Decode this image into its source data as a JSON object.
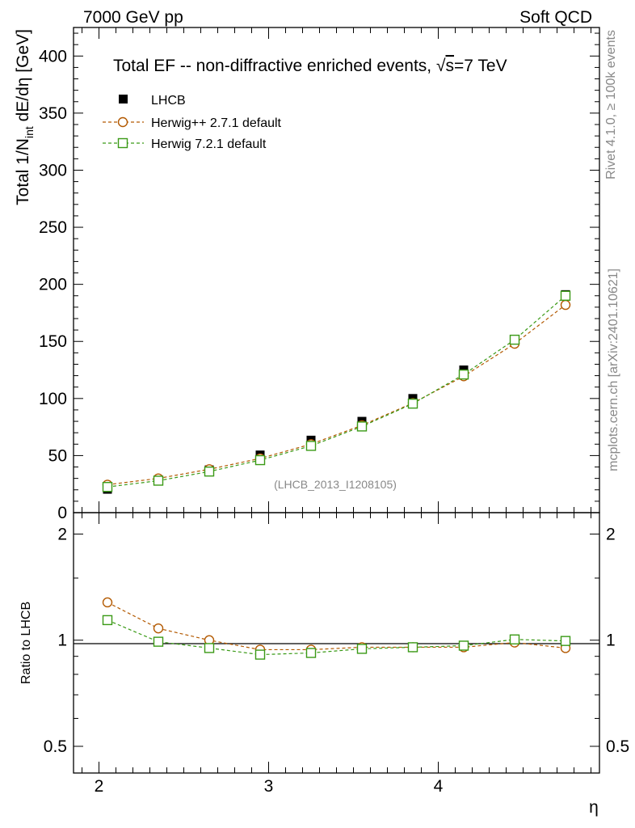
{
  "header": {
    "left": "7000 GeV pp",
    "right": "Soft QCD"
  },
  "side_text": {
    "rivet": "Rivet 4.1.0, ≥ 100k events",
    "mcplots": "mcplots.cern.ch [arXiv:2401.10621]"
  },
  "colors": {
    "data": "#000000",
    "herwigpp": "#b35900",
    "herwig7": "#3a9a16"
  },
  "chart_data": [
    {
      "type": "line",
      "title_main": "Total EF -- non-diffractive enriched events, ",
      "title_sqrt": "√",
      "title_s": "s",
      "title_energy": "=7 TeV",
      "xlabel": "η",
      "ylabel_main": "Total 1/N",
      "ylabel_sub": "int",
      "ylabel_unit": "  dE/dη [GeV]",
      "watermark": "(LHCB_2013_I1208105)",
      "xlim": [
        1.85,
        4.95
      ],
      "ylim": [
        0,
        425
      ],
      "xticks": [
        2,
        3,
        4
      ],
      "xtick_labels": [
        "2",
        "3",
        "4"
      ],
      "yticks": [
        0,
        50,
        100,
        150,
        200,
        250,
        300,
        350,
        400
      ],
      "ytick_labels": [
        "0",
        "50",
        "100",
        "150",
        "200",
        "250",
        "300",
        "350",
        "400"
      ],
      "x": [
        2.05,
        2.35,
        2.65,
        2.95,
        3.25,
        3.55,
        3.85,
        4.15,
        4.45,
        4.75
      ],
      "series": [
        {
          "name": "LHCB",
          "marker": "filled-square",
          "values": [
            20.5,
            28.5,
            37.5,
            50.5,
            63.5,
            80,
            100,
            125,
            150,
            191
          ]
        },
        {
          "name": "Herwig++ 2.7.1 default",
          "marker": "open-circle",
          "values": [
            24.5,
            30,
            38,
            47.5,
            60,
            76.5,
            96,
            119.5,
            148,
            182
          ]
        },
        {
          "name": "Herwig 7.2.1 default",
          "marker": "open-square",
          "values": [
            22.5,
            28,
            36,
            46,
            58.5,
            75.5,
            95.5,
            121,
            151.5,
            190
          ]
        }
      ]
    },
    {
      "type": "line",
      "yscale": "log",
      "ylabel": "Ratio to LHCB",
      "xlim": [
        1.85,
        4.95
      ],
      "ylim": [
        0.42,
        2.3
      ],
      "yticks": [
        0.5,
        1,
        2
      ],
      "ytick_labels": [
        "0.5",
        "1",
        "2"
      ],
      "x": [
        2.05,
        2.35,
        2.65,
        2.95,
        3.25,
        3.55,
        3.85,
        4.15,
        4.45,
        4.75
      ],
      "series": [
        {
          "name": "Herwig++ 2.7.1 default",
          "values": [
            1.28,
            1.08,
            1.0,
            0.94,
            0.94,
            0.955,
            0.955,
            0.955,
            0.985,
            0.95
          ]
        },
        {
          "name": "Herwig 7.2.1 default",
          "values": [
            1.14,
            0.99,
            0.95,
            0.91,
            0.92,
            0.945,
            0.955,
            0.965,
            1.005,
            0.995
          ]
        }
      ]
    }
  ]
}
